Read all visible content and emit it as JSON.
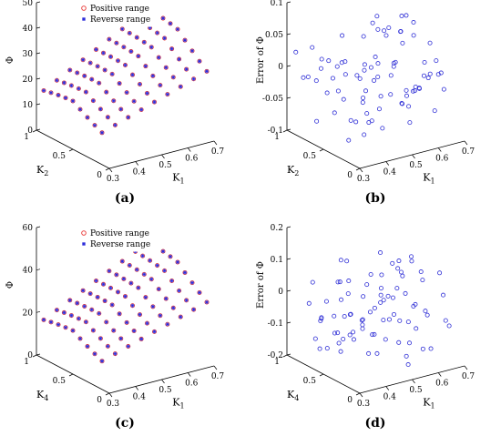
{
  "panels": [
    {
      "id": "a",
      "caption": "(a)",
      "zlabel": "Φ",
      "xlabel": "K",
      "xlabel_sub": "1",
      "ylabel": "K",
      "ylabel_sub": "2",
      "zticks": [
        "0",
        "10",
        "20",
        "30",
        "40",
        "50"
      ],
      "xticks": [
        "0.3",
        "0.4",
        "0.5",
        "0.6",
        "0.7"
      ],
      "yticks": [
        "0",
        "0.5",
        "1"
      ],
      "legend": [
        "Positive range",
        "Reverse range"
      ]
    },
    {
      "id": "b",
      "caption": "(b)",
      "zlabel": "Error of Φ",
      "xlabel": "K",
      "xlabel_sub": "1",
      "ylabel": "K",
      "ylabel_sub": "2",
      "zticks": [
        "-0.1",
        "-0.05",
        "0",
        "0.05",
        "0.1"
      ],
      "xticks": [
        "0.3",
        "0.4",
        "0.5",
        "0.6",
        "0.7"
      ],
      "yticks": [
        "0",
        "0.5",
        "1"
      ],
      "legend": []
    },
    {
      "id": "c",
      "caption": "(c)",
      "zlabel": "Φ",
      "xlabel": "K",
      "xlabel_sub": "1",
      "ylabel": "K",
      "ylabel_sub": "4",
      "zticks": [
        "0",
        "20",
        "40",
        "60"
      ],
      "xticks": [
        "0.3",
        "0.4",
        "0.5",
        "0.6",
        "0.7"
      ],
      "yticks": [
        "0",
        "0.5",
        "1"
      ],
      "legend": [
        "Positive range",
        "Reverse range"
      ]
    },
    {
      "id": "d",
      "caption": "(d)",
      "zlabel": "Error of Φ",
      "xlabel": "K",
      "xlabel_sub": "1",
      "ylabel": "K",
      "ylabel_sub": "4",
      "zticks": [
        "-0.2",
        "-0.1",
        "0",
        "0.1",
        "0.2"
      ],
      "xticks": [
        "0.3",
        "0.4",
        "0.5",
        "0.6",
        "0.7"
      ],
      "yticks": [
        "0",
        "0.5",
        "1"
      ],
      "legend": []
    }
  ],
  "colors": {
    "positive_marker": "#e8312f",
    "reverse_marker": "#2b2bd9",
    "error_marker": "#2f2fd6",
    "axis": "#000000"
  },
  "chart_data": [
    {
      "type": "scatter",
      "panel": "a",
      "title": "",
      "xlabel": "K1",
      "ylabel": "K2",
      "zlabel": "Φ",
      "xlim": [
        0.3,
        0.7
      ],
      "ylim": [
        0,
        1
      ],
      "zlim": [
        0,
        50
      ],
      "legend_position": "top-left",
      "series": [
        {
          "name": "Positive range",
          "marker": "circle",
          "color": "#e8312f",
          "grid": {
            "k1": [
              0.3,
              0.35,
              0.4,
              0.45,
              0.5,
              0.55,
              0.6,
              0.65,
              0.7
            ],
            "k2": [
              0.1,
              0.2,
              0.3,
              0.4,
              0.5,
              0.6,
              0.7,
              0.8,
              0.9
            ]
          },
          "phi_range": [
            5,
            50
          ]
        },
        {
          "name": "Reverse range",
          "marker": "asterisk",
          "color": "#2b2bd9",
          "grid": {
            "k1": [
              0.3,
              0.35,
              0.4,
              0.45,
              0.5,
              0.55,
              0.6,
              0.65,
              0.7
            ],
            "k2": [
              0.1,
              0.2,
              0.3,
              0.4,
              0.5,
              0.6,
              0.7,
              0.8,
              0.9
            ]
          },
          "phi_range": [
            5,
            50
          ]
        }
      ]
    },
    {
      "type": "scatter",
      "panel": "b",
      "title": "",
      "xlabel": "K1",
      "ylabel": "K2",
      "zlabel": "Error of Φ",
      "xlim": [
        0.3,
        0.7
      ],
      "ylim": [
        0,
        1
      ],
      "zlim": [
        -0.1,
        0.1
      ],
      "series": [
        {
          "marker": "circle",
          "color": "#2f2fd6",
          "error_range": [
            -0.09,
            0.08
          ],
          "points": 81
        }
      ]
    },
    {
      "type": "scatter",
      "panel": "c",
      "title": "",
      "xlabel": "K1",
      "ylabel": "K4",
      "zlabel": "Φ",
      "xlim": [
        0.3,
        0.7
      ],
      "ylim": [
        0,
        1
      ],
      "zlim": [
        0,
        60
      ],
      "legend_position": "top-left",
      "series": [
        {
          "name": "Positive range",
          "marker": "circle",
          "color": "#e8312f",
          "grid": {
            "k1": [
              0.3,
              0.35,
              0.4,
              0.45,
              0.5,
              0.55,
              0.6,
              0.65,
              0.7
            ],
            "k4": [
              0.1,
              0.2,
              0.3,
              0.4,
              0.5,
              0.6,
              0.7,
              0.8,
              0.9
            ]
          },
          "phi_range": [
            5,
            55
          ]
        },
        {
          "name": "Reverse range",
          "marker": "asterisk",
          "color": "#2b2bd9",
          "grid": {
            "k1": [
              0.3,
              0.35,
              0.4,
              0.45,
              0.5,
              0.55,
              0.6,
              0.65,
              0.7
            ],
            "k4": [
              0.1,
              0.2,
              0.3,
              0.4,
              0.5,
              0.6,
              0.7,
              0.8,
              0.9
            ]
          },
          "phi_range": [
            5,
            55
          ]
        }
      ]
    },
    {
      "type": "scatter",
      "panel": "d",
      "title": "",
      "xlabel": "K1",
      "ylabel": "K4",
      "zlabel": "Error of Φ",
      "xlim": [
        0.3,
        0.7
      ],
      "ylim": [
        0,
        1
      ],
      "zlim": [
        -0.2,
        0.2
      ],
      "series": [
        {
          "marker": "circle",
          "color": "#2f2fd6",
          "error_range": [
            -0.16,
            0.1
          ],
          "points": 81
        }
      ]
    }
  ]
}
